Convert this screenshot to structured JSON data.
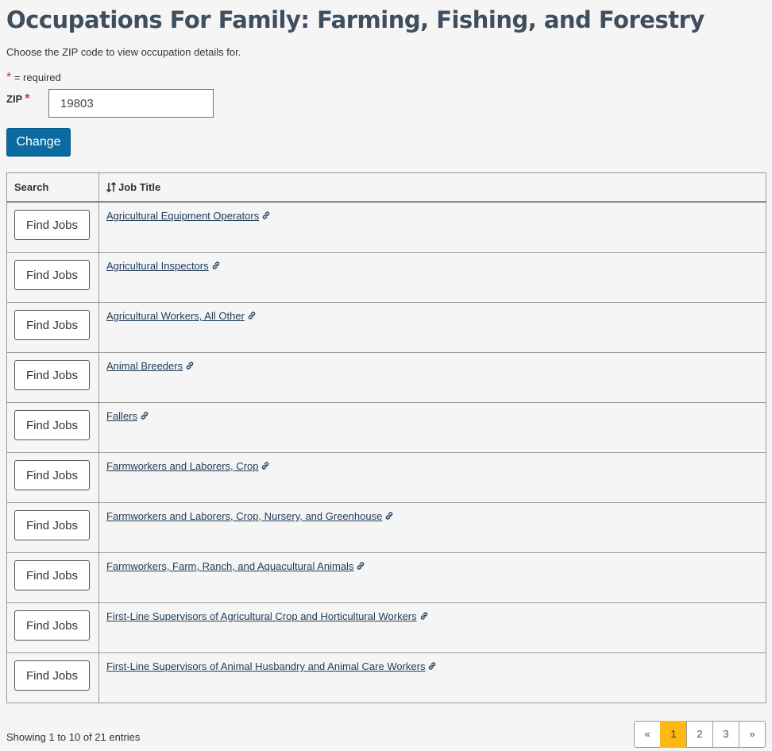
{
  "page": {
    "title": "Occupations For Family: Farming, Fishing, and Forestry",
    "intro": "Choose the ZIP code to view occupation details for.",
    "required_star": "*",
    "required_note": " = required"
  },
  "form": {
    "zip_label": "ZIP",
    "zip_star": "*",
    "zip_value": "19803",
    "change_label": "Change"
  },
  "table": {
    "headers": {
      "search": "Search",
      "job_title": "Job Title"
    },
    "button_label": "Find Jobs",
    "rows": [
      "Agricultural Equipment Operators",
      "Agricultural Inspectors",
      "Agricultural Workers, All Other",
      "Animal Breeders",
      "Fallers",
      "Farmworkers and Laborers, Crop",
      "Farmworkers and Laborers, Crop, Nursery, and Greenhouse",
      "Farmworkers, Farm, Ranch, and Aquacultural Animals",
      "First-Line Supervisors of Agricultural Crop and Horticultural Workers",
      "First-Line Supervisors of Animal Husbandry and Animal Care Workers"
    ]
  },
  "footer": {
    "showing": "Showing 1 to 10 of 21 entries",
    "pages": [
      "«",
      "1",
      "2",
      "3",
      "»"
    ],
    "active_page": "1"
  },
  "icons": {
    "link": "link-icon",
    "sort": "sort-icon"
  },
  "colors": {
    "title": "#3f4e5e",
    "primary_button": "#0b6ba0",
    "active_page": "#fdb913",
    "required": "#c0392b"
  }
}
